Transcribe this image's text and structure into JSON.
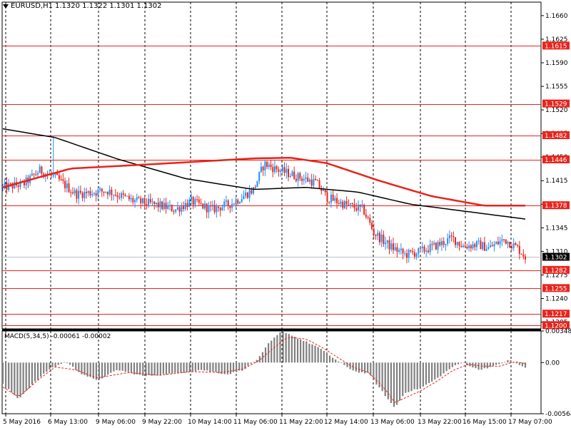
{
  "header": {
    "symbol_tf": "EURUSD,H1",
    "ohlc": "1.1320 1.1322 1.1301 1.1302"
  },
  "macd_header": {
    "label": "MACD(5,34,5)",
    "values": "-0.00061 -0.00002"
  },
  "colors": {
    "bull": "#1e90ff",
    "bear": "#e8241c",
    "ma_fast": "#e8241c",
    "ma_slow": "#000000",
    "level_line": "#e8241c",
    "histogram": "#808080",
    "signal": "#e8241c"
  },
  "chart_data": [
    {
      "type": "candlestick",
      "title": "EURUSD,H1",
      "ylim": [
        1.1195,
        1.168
      ],
      "y_ticks": [
        "1.1660",
        "1.1625",
        "1.1590",
        "1.1555",
        "1.1520",
        "1.1485",
        "1.1450",
        "1.1415",
        "1.1380",
        "1.1345",
        "1.1310",
        "1.1275",
        "1.1240",
        "1.1205"
      ],
      "x_ticks": [
        "5 May 2016",
        "6 May 13:00",
        "9 May 06:00",
        "9 May 22:00",
        "10 May 14:00",
        "11 May 06:00",
        "11 May 22:00",
        "12 May 14:00",
        "13 May 06:00",
        "13 May 22:00",
        "16 May 15:00",
        "17 May 07:00"
      ],
      "price_levels": [
        "1.1615",
        "1.1529",
        "1.1482",
        "1.1446",
        "1.1378",
        "1.1282",
        "1.1255",
        "1.1217",
        "1.1200"
      ],
      "current_price": "1.1302",
      "ma_fast_anchors": [
        [
          0,
          1.1405
        ],
        [
          0.13,
          1.1433
        ],
        [
          0.3,
          1.144
        ],
        [
          0.48,
          1.1448
        ],
        [
          0.55,
          1.1449
        ],
        [
          0.62,
          1.1441
        ],
        [
          0.72,
          1.1415
        ],
        [
          0.82,
          1.1392
        ],
        [
          0.92,
          1.1378
        ],
        [
          1,
          1.1378
        ]
      ],
      "ma_slow_anchors": [
        [
          0,
          1.1492
        ],
        [
          0.1,
          1.1479
        ],
        [
          0.22,
          1.1447
        ],
        [
          0.35,
          1.1418
        ],
        [
          0.48,
          1.1402
        ],
        [
          0.58,
          1.1405
        ],
        [
          0.68,
          1.1398
        ],
        [
          0.78,
          1.138
        ],
        [
          0.9,
          1.1368
        ],
        [
          1,
          1.1358
        ]
      ],
      "price_anchors": [
        [
          0,
          1.1405
        ],
        [
          0.04,
          1.141
        ],
        [
          0.07,
          1.143
        ],
        [
          0.1,
          1.142
        ],
        [
          0.14,
          1.1395
        ],
        [
          0.2,
          1.14
        ],
        [
          0.25,
          1.1385
        ],
        [
          0.3,
          1.1378
        ],
        [
          0.33,
          1.1372
        ],
        [
          0.36,
          1.1384
        ],
        [
          0.4,
          1.1372
        ],
        [
          0.44,
          1.1382
        ],
        [
          0.48,
          1.1402
        ],
        [
          0.5,
          1.144
        ],
        [
          0.53,
          1.143
        ],
        [
          0.56,
          1.1422
        ],
        [
          0.6,
          1.1412
        ],
        [
          0.62,
          1.139
        ],
        [
          0.66,
          1.1378
        ],
        [
          0.69,
          1.1372
        ],
        [
          0.71,
          1.1338
        ],
        [
          0.74,
          1.1318
        ],
        [
          0.77,
          1.1305
        ],
        [
          0.8,
          1.131
        ],
        [
          0.84,
          1.1322
        ],
        [
          0.86,
          1.133
        ],
        [
          0.88,
          1.1318
        ],
        [
          0.91,
          1.132
        ],
        [
          0.93,
          1.1315
        ],
        [
          0.96,
          1.1328
        ],
        [
          0.985,
          1.1315
        ],
        [
          1,
          1.1302
        ]
      ]
    },
    {
      "type": "bar",
      "title": "MACD(5,34,5)",
      "ylim": [
        -0.00564,
        0.00348
      ],
      "y_ticks": [
        "0.00348",
        "0.00",
        "-0.00564"
      ],
      "histogram_anchors": [
        [
          0,
          -0.0024
        ],
        [
          0.03,
          -0.004
        ],
        [
          0.06,
          -0.0022
        ],
        [
          0.09,
          -0.0007
        ],
        [
          0.12,
          0.0001
        ],
        [
          0.15,
          -0.0012
        ],
        [
          0.18,
          -0.002
        ],
        [
          0.22,
          -0.0008
        ],
        [
          0.27,
          -0.0015
        ],
        [
          0.33,
          -0.0012
        ],
        [
          0.38,
          -0.0008
        ],
        [
          0.43,
          -0.0013
        ],
        [
          0.46,
          -0.0008
        ],
        [
          0.49,
          0.0005
        ],
        [
          0.51,
          0.0022
        ],
        [
          0.535,
          0.0035
        ],
        [
          0.56,
          0.0028
        ],
        [
          0.6,
          0.0018
        ],
        [
          0.625,
          0.0008
        ],
        [
          0.65,
          -0.0002
        ],
        [
          0.675,
          -0.001
        ],
        [
          0.7,
          -0.0012
        ],
        [
          0.73,
          -0.0035
        ],
        [
          0.75,
          -0.005
        ],
        [
          0.77,
          -0.0033
        ],
        [
          0.8,
          -0.0028
        ],
        [
          0.83,
          -0.0018
        ],
        [
          0.86,
          -0.0005
        ],
        [
          0.88,
          0.0
        ],
        [
          0.91,
          -0.0008
        ],
        [
          0.94,
          -0.0004
        ],
        [
          0.97,
          0.0003
        ],
        [
          1,
          -0.0006
        ]
      ],
      "signal_anchors": [
        [
          0,
          -0.0027
        ],
        [
          0.03,
          -0.0038
        ],
        [
          0.07,
          -0.0018
        ],
        [
          0.1,
          -0.0005
        ],
        [
          0.14,
          -0.0008
        ],
        [
          0.18,
          -0.0017
        ],
        [
          0.24,
          -0.0011
        ],
        [
          0.3,
          -0.0014
        ],
        [
          0.36,
          -0.001
        ],
        [
          0.42,
          -0.0011
        ],
        [
          0.46,
          -0.0007
        ],
        [
          0.49,
          0.0002
        ],
        [
          0.52,
          0.0017
        ],
        [
          0.545,
          0.0028
        ],
        [
          0.58,
          0.0026
        ],
        [
          0.61,
          0.0017
        ],
        [
          0.64,
          0.0006
        ],
        [
          0.67,
          -0.0005
        ],
        [
          0.7,
          -0.0011
        ],
        [
          0.73,
          -0.0028
        ],
        [
          0.75,
          -0.0044
        ],
        [
          0.77,
          -0.0039
        ],
        [
          0.8,
          -0.0031
        ],
        [
          0.83,
          -0.0021
        ],
        [
          0.86,
          -0.0009
        ],
        [
          0.89,
          -0.0002
        ],
        [
          0.92,
          -0.0004
        ],
        [
          0.95,
          -0.0004
        ],
        [
          0.98,
          0.0001
        ],
        [
          1,
          -0.0001
        ]
      ]
    }
  ]
}
